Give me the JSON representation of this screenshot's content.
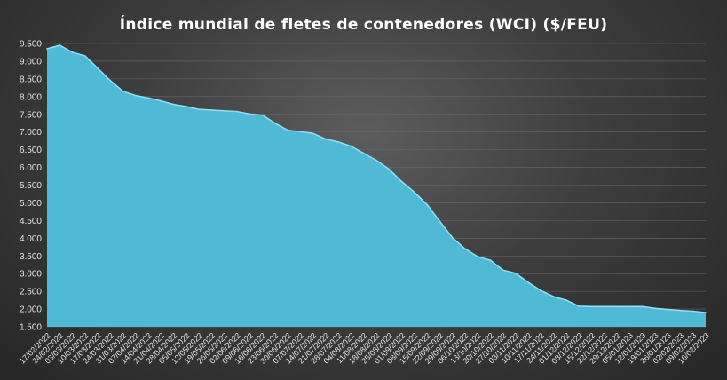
{
  "chart_data": {
    "type": "area",
    "title": "Índice mundial  de fletes de contenedores (WCI) ($/FEU)",
    "xlabel": "",
    "ylabel": "",
    "ylim": [
      1500,
      9500
    ],
    "yticks": [
      "1.500",
      "2.000",
      "2.500",
      "3.000",
      "3.500",
      "4.000",
      "4.500",
      "5.000",
      "5.500",
      "6.000",
      "6.500",
      "7.000",
      "7.500",
      "8.000",
      "8.500",
      "9.000",
      "9.500"
    ],
    "grid": true,
    "legend": "none",
    "color": "#4fb9d6",
    "categories": [
      "17/02/2022",
      "24/02/2022",
      "03/03/2022",
      "10/03/2022",
      "17/03/2022",
      "24/03/2022",
      "31/03/2022",
      "07/04/2022",
      "14/04/2022",
      "21/04/2022",
      "28/04/2022",
      "05/05/2022",
      "12/05/2022",
      "19/05/2022",
      "26/05/2022",
      "02/06/2022",
      "09/06/2022",
      "16/06/2022",
      "23/06/2022",
      "30/06/2022",
      "07/07/2022",
      "14/07/2022",
      "21/07/2022",
      "28/07/2022",
      "04/08/2022",
      "11/08/2022",
      "18/08/2022",
      "25/08/2022",
      "01/09/2022",
      "08/09/2022",
      "15/09/2022",
      "22/09/2022",
      "29/09/2022",
      "06/10/2022",
      "13/10/2022",
      "20/10/2022",
      "27/10/2022",
      "03/11/2022",
      "10/11/2022",
      "17/11/2022",
      "24/11/2022",
      "01/12/2022",
      "08/12/2022",
      "15/12/2022",
      "22/12/2022",
      "29/12/2022",
      "05/01/2023",
      "12/01/2023",
      "19/01/2023",
      "26/01/2023",
      "02/02/2023",
      "09/02/2023",
      "16/02/2023"
    ],
    "values": [
      9350,
      9450,
      9250,
      9150,
      8800,
      8450,
      8150,
      8030,
      7960,
      7880,
      7780,
      7720,
      7640,
      7620,
      7600,
      7580,
      7510,
      7480,
      7250,
      7050,
      7010,
      6960,
      6800,
      6720,
      6600,
      6400,
      6200,
      5950,
      5600,
      5300,
      4950,
      4480,
      4020,
      3700,
      3480,
      3380,
      3100,
      3010,
      2750,
      2520,
      2350,
      2250,
      2080,
      2070,
      2070,
      2070,
      2070,
      2070,
      2020,
      1990,
      1960,
      1940,
      1900
    ]
  }
}
